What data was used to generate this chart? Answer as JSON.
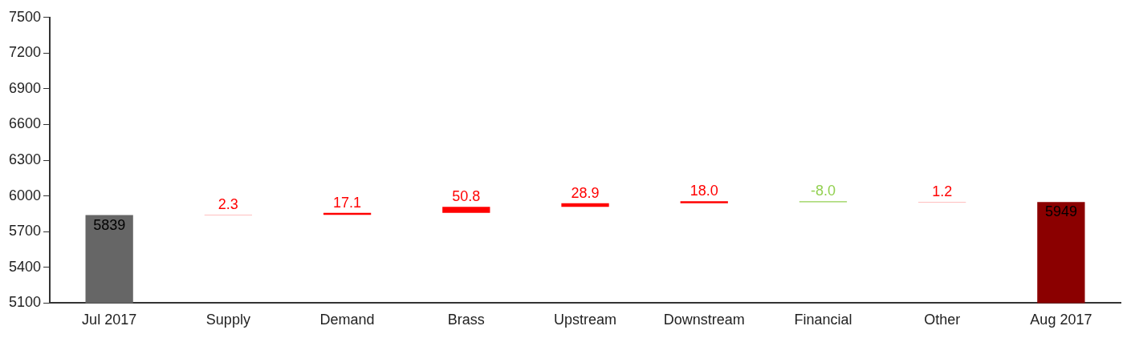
{
  "chart_data": {
    "type": "bar",
    "categories": [
      "Jul 2017",
      "Supply",
      "Demand",
      "Brass",
      "Upstream",
      "Downstream",
      "Financial",
      "Other",
      "Aug 2017"
    ],
    "values": [
      5839,
      2.3,
      17.1,
      50.8,
      28.9,
      18.0,
      -8.0,
      1.2,
      5949
    ],
    "base": [
      null,
      5839,
      5841.3,
      5858.4,
      5909.2,
      5938.1,
      5956.1,
      5948.1,
      null
    ],
    "colors": [
      "#666666",
      "#ff0000",
      "#ff0000",
      "#ff0000",
      "#ff0000",
      "#ff0000",
      "#92d050",
      "#ff0000",
      "#8b0000"
    ],
    "value_labels": [
      "5839",
      "2.3",
      "17.1",
      "50.8",
      "28.9",
      "18.0",
      "-8.0",
      "1.2",
      "5949"
    ],
    "ylim": [
      5100,
      7500
    ],
    "yticks": [
      5100,
      5400,
      5700,
      6000,
      6300,
      6600,
      6900,
      7200,
      7500
    ],
    "grid": false,
    "legend": false
  }
}
